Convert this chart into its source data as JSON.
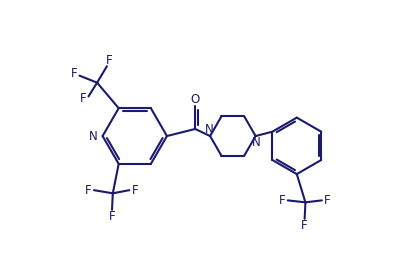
{
  "bg_color": "#ffffff",
  "line_color": "#1a1a6e",
  "line_width": 1.5,
  "font_size": 8.5,
  "figsize": [
    3.99,
    2.76
  ],
  "dpi": 100,
  "xlim": [
    0,
    10
  ],
  "ylim": [
    0,
    7
  ]
}
